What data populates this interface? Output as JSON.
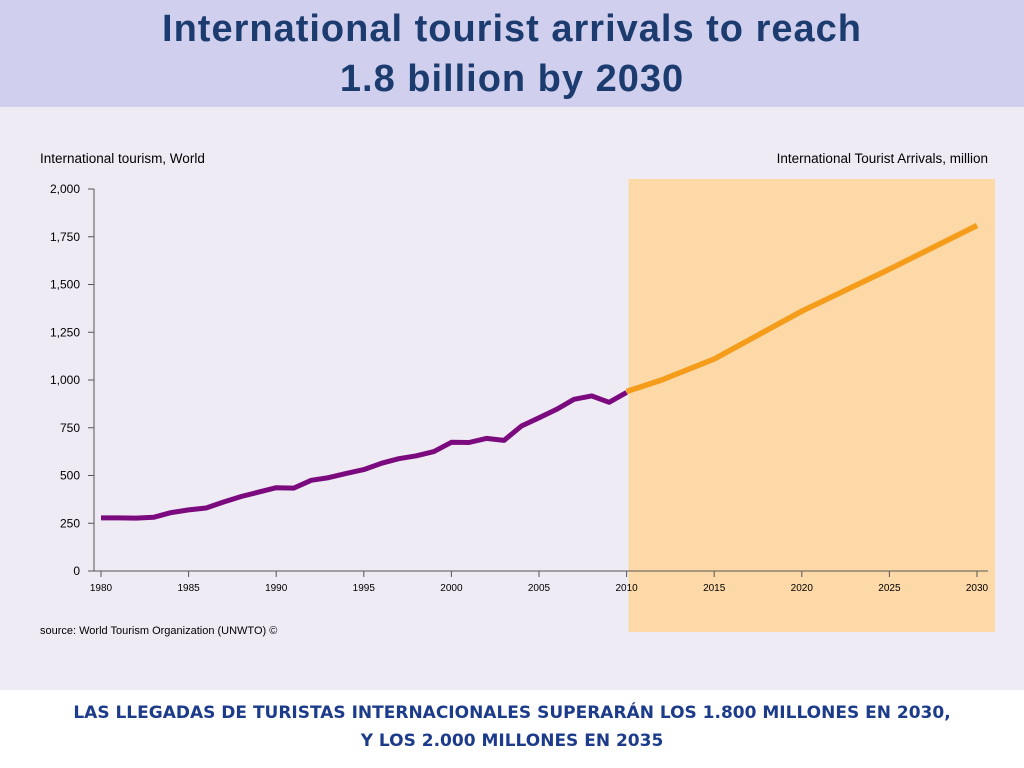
{
  "slide": {
    "title_line1": "International tourist arrivals to reach",
    "title_line2": "1.8 billion by 2030",
    "caption_line1": "LAS LLEGADAS DE TURISTAS INTERNACIONALES SUPERARÁN LOS 1.800 MILLONES EN 2030,",
    "caption_line2": "Y LOS 2.000 MILLONES EN 2035"
  },
  "colors": {
    "title_band": "#d0cfee",
    "title_text": "#1c3b6e",
    "caption_text": "#1c3b8a",
    "actual_line": "#7b0a7e",
    "forecast_line": "#f59c1a",
    "forecast_shade": "#fdd9a8"
  },
  "chart_data": {
    "type": "line",
    "title": "International tourism, World",
    "subtitle": "International Tourist Arrivals, million",
    "source": "source: World Tourism Organization (UNWTO) ©",
    "xlim": [
      1980,
      2030
    ],
    "ylim": [
      0,
      2000
    ],
    "y_ticks": [
      "0",
      "250",
      "500",
      "750",
      "1,000",
      "1,250",
      "1,500",
      "1,750",
      "2,000"
    ],
    "y_tick_values": [
      0,
      250,
      500,
      750,
      1000,
      1250,
      1500,
      1750,
      2000
    ],
    "x_ticks": [
      "1980",
      "1985",
      "1990",
      "1995",
      "2000",
      "2005",
      "2010",
      "2015",
      "2020",
      "2025",
      "2030"
    ],
    "x_tick_values": [
      1980,
      1985,
      1990,
      1995,
      2000,
      2005,
      2010,
      2015,
      2020,
      2025,
      2030
    ],
    "shaded_region": [
      2010,
      2030
    ],
    "grid": false,
    "series": [
      {
        "role": "actual",
        "x": [
          1980,
          1981,
          1982,
          1983,
          1984,
          1985,
          1986,
          1987,
          1988,
          1989,
          1990,
          1991,
          1992,
          1993,
          1994,
          1995,
          1996,
          1997,
          1998,
          1999,
          2000,
          2001,
          2002,
          2003,
          2004,
          2005,
          2006,
          2007,
          2008,
          2009,
          2010
        ],
        "values": [
          278,
          278,
          277,
          281,
          306,
          320,
          330,
          361,
          390,
          413,
          436,
          434,
          475,
          489,
          511,
          531,
          564,
          588,
          603,
          625,
          674,
          673,
          694,
          684,
          759,
          802,
          846,
          899,
          917,
          883,
          935
        ]
      },
      {
        "role": "forecast",
        "x": [
          2010,
          2012,
          2015,
          2020,
          2025,
          2030
        ],
        "values": [
          940,
          1000,
          1110,
          1360,
          1580,
          1809
        ]
      }
    ]
  }
}
